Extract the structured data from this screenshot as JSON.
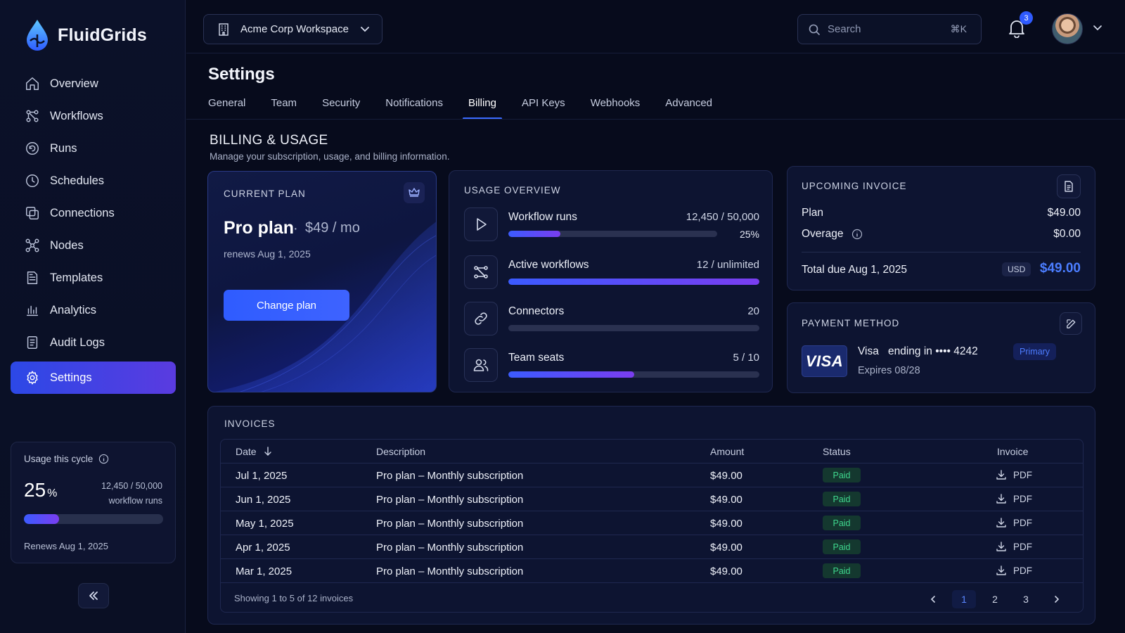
{
  "brand": {
    "name": "FluidGrids"
  },
  "sidebar": {
    "items": [
      {
        "label": "Overview",
        "icon": "home-icon"
      },
      {
        "label": "Workflows",
        "icon": "workflow-icon"
      },
      {
        "label": "Runs",
        "icon": "runs-icon"
      },
      {
        "label": "Schedules",
        "icon": "clock-icon"
      },
      {
        "label": "Connections",
        "icon": "connections-icon"
      },
      {
        "label": "Nodes",
        "icon": "nodes-icon"
      },
      {
        "label": "Templates",
        "icon": "template-icon"
      },
      {
        "label": "Analytics",
        "icon": "analytics-icon"
      },
      {
        "label": "Audit Logs",
        "icon": "audit-icon"
      },
      {
        "label": "Settings",
        "icon": "gear-icon",
        "active": true
      }
    ],
    "usage": {
      "title": "Usage this cycle",
      "percent": "25",
      "percent_sign": "%",
      "count": "12,450 / 50,000",
      "unit": "workflow runs",
      "fill": 0.25,
      "renews": "Renews Aug 1, 2025"
    }
  },
  "topbar": {
    "workspace": "Acme Corp Workspace",
    "search_placeholder": "Search",
    "search_shortcut": "⌘K",
    "notifications": "3"
  },
  "page": {
    "title": "Settings",
    "tabs": [
      "General",
      "Team",
      "Security",
      "Notifications",
      "Billing",
      "API Keys",
      "Webhooks",
      "Advanced"
    ],
    "active_tab": "Billing"
  },
  "billing": {
    "title": "BILLING & USAGE",
    "subtitle": "Manage your subscription, usage, and billing information."
  },
  "plan": {
    "label": "CURRENT PLAN",
    "name": "Pro plan",
    "separator": "·",
    "price": "$49 / mo",
    "renews": "renews Aug 1, 2025",
    "button": "Change plan"
  },
  "usage_overview": {
    "label": "USAGE OVERVIEW",
    "rows": [
      {
        "name": "Workflow runs",
        "value": "12,450 / 50,000",
        "pct": "25%",
        "fill": 0.25,
        "icon": "play-icon"
      },
      {
        "name": "Active workflows",
        "value": "12 / unlimited",
        "fill": 1.0,
        "icon": "workflow-icon"
      },
      {
        "name": "Connectors",
        "value": "20",
        "fill": 0.0,
        "icon": "link-icon"
      },
      {
        "name": "Team seats",
        "value": "5 / 10",
        "fill": 0.5,
        "icon": "users-icon"
      }
    ]
  },
  "upcoming_invoice": {
    "label": "UPCOMING INVOICE",
    "plan_label": "Plan",
    "plan_amount": "$49.00",
    "overage_label": "Overage",
    "overage_amount": "$0.00",
    "total_label": "Total due Aug 1, 2025",
    "currency": "USD",
    "total_amount": "$49.00"
  },
  "payment": {
    "label": "PAYMENT METHOD",
    "logo": "VISA",
    "brand": "Visa",
    "ending": "ending in •••• 4242",
    "expires": "Expires 08/28",
    "badge": "Primary"
  },
  "invoices": {
    "label": "INVOICES",
    "columns": [
      "Date",
      "Description",
      "Amount",
      "Status",
      "Invoice"
    ],
    "rows": [
      {
        "date": "Jul 1, 2025",
        "desc": "Pro plan – Monthly subscription",
        "amount": "$49.00",
        "status": "Paid",
        "file": "PDF"
      },
      {
        "date": "Jun 1, 2025",
        "desc": "Pro plan – Monthly subscription",
        "amount": "$49.00",
        "status": "Paid",
        "file": "PDF"
      },
      {
        "date": "May 1, 2025",
        "desc": "Pro plan – Monthly subscription",
        "amount": "$49.00",
        "status": "Paid",
        "file": "PDF"
      },
      {
        "date": "Apr 1, 2025",
        "desc": "Pro plan – Monthly subscription",
        "amount": "$49.00",
        "status": "Paid",
        "file": "PDF"
      },
      {
        "date": "Mar 1, 2025",
        "desc": "Pro plan – Monthly subscription",
        "amount": "$49.00",
        "status": "Paid",
        "file": "PDF"
      }
    ],
    "footer": "Showing 1 to 5 of 12 invoices",
    "pages": [
      "1",
      "2",
      "3"
    ],
    "current_page": "1"
  },
  "colors": {
    "accent": "#3b6bff",
    "paid": "#3fd78e",
    "background": "#070b1c"
  }
}
